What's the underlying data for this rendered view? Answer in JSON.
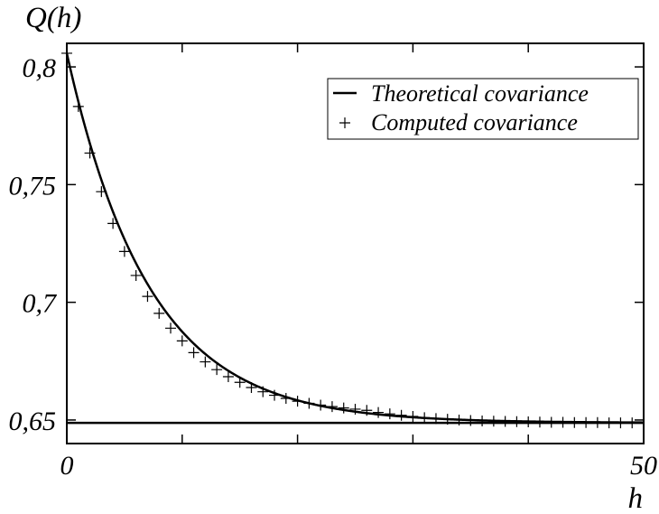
{
  "chart_data": {
    "type": "line",
    "title": "",
    "xlabel": "h",
    "ylabel": "Q(h)",
    "xlim": [
      0,
      50
    ],
    "ylim": [
      0.64,
      0.81
    ],
    "x_ticks": [
      0,
      50
    ],
    "x_tick_labels": [
      "0",
      "50"
    ],
    "y_ticks": [
      0.65,
      0.7,
      0.75,
      0.8
    ],
    "y_tick_labels": [
      "0,65",
      "0,7",
      "0,75",
      "0,8"
    ],
    "grid": false,
    "legend_position": "top-right",
    "series": [
      {
        "name": "Theoretical covariance",
        "style": "solid-line",
        "color": "#000000",
        "model": "exponential",
        "params": {
          "sill": 0.6488,
          "amplitude": 0.157,
          "decay_rate": 0.14
        }
      },
      {
        "name": "Computed covariance",
        "style": "plus-markers",
        "color": "#000000",
        "x": [
          0,
          1,
          2,
          3,
          4,
          5,
          6,
          7,
          8,
          9,
          10,
          11,
          12,
          13,
          14,
          15,
          16,
          17,
          18,
          19,
          20,
          21,
          22,
          23,
          24,
          25,
          26,
          27,
          28,
          29,
          30,
          31,
          32,
          33,
          34,
          35,
          36,
          37,
          38,
          39,
          40,
          41,
          42,
          43,
          44,
          45,
          46,
          47,
          48,
          49
        ],
        "y": [
          0.8058,
          0.7832,
          0.7634,
          0.747,
          0.7335,
          0.7216,
          0.7114,
          0.7025,
          0.6953,
          0.689,
          0.6836,
          0.6786,
          0.6747,
          0.6714,
          0.6684,
          0.666,
          0.6638,
          0.662,
          0.6605,
          0.6592,
          0.658,
          0.6571,
          0.6563,
          0.6557,
          0.6551,
          0.6546,
          0.6541,
          0.6532,
          0.6526,
          0.652,
          0.6515,
          0.651,
          0.6506,
          0.6503,
          0.65,
          0.6498,
          0.6496,
          0.6495,
          0.6494,
          0.6493,
          0.6492,
          0.6491,
          0.649,
          0.649,
          0.6489,
          0.6489,
          0.6489,
          0.6488,
          0.6488,
          0.6488
        ]
      },
      {
        "name": "",
        "style": "solid-line",
        "color": "#000000",
        "x": [
          0,
          50
        ],
        "y": [
          0.6488,
          0.6488
        ]
      }
    ]
  }
}
